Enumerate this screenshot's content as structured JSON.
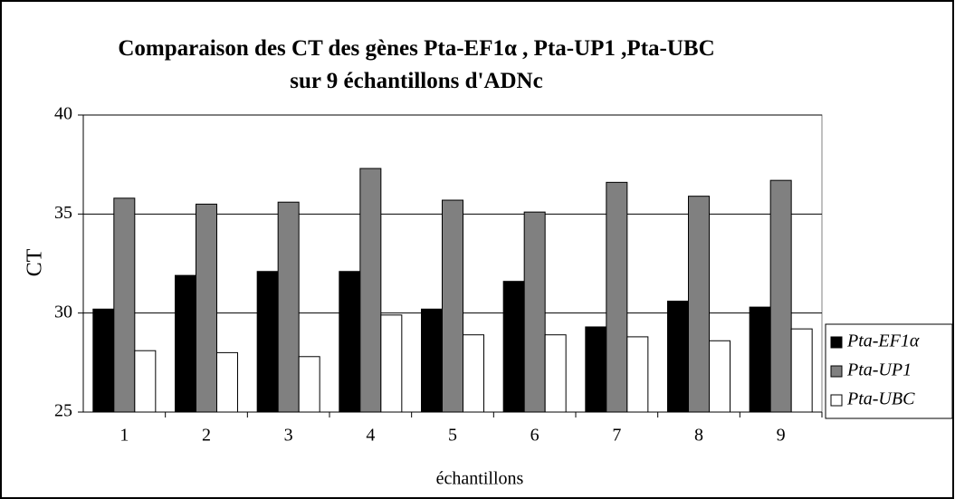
{
  "chart_data": {
    "type": "bar",
    "title": "Comparaison des CT des gènes Pta-EF1α , Pta-UP1 ,Pta-UBC sur 9 échantillons d'ADNc",
    "xlabel": "échantillons",
    "ylabel": "CT",
    "categories": [
      "1",
      "2",
      "3",
      "4",
      "5",
      "6",
      "7",
      "8",
      "9"
    ],
    "series": [
      {
        "name": "Pta-EF1α",
        "color": "#000000",
        "values": [
          30.2,
          31.9,
          32.1,
          32.1,
          30.2,
          31.6,
          29.3,
          30.6,
          30.3
        ]
      },
      {
        "name": "Pta-UP1",
        "color": "#808080",
        "values": [
          35.8,
          35.5,
          35.6,
          37.3,
          35.7,
          35.1,
          36.6,
          35.9,
          36.7
        ]
      },
      {
        "name": "Pta-UBC",
        "color": "#ffffff",
        "values": [
          28.1,
          28.0,
          27.8,
          29.9,
          28.9,
          28.9,
          28.8,
          28.6,
          29.2
        ]
      }
    ],
    "ylim": [
      25,
      40
    ],
    "yticks": [
      25,
      30,
      35,
      40
    ],
    "grid": true,
    "legend": "right"
  }
}
